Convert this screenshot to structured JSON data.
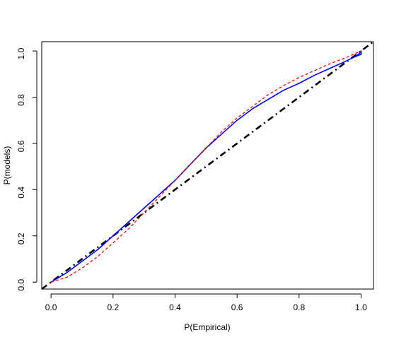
{
  "chart_data": {
    "type": "line",
    "title": "",
    "xlabel": "P(Empirical)",
    "ylabel": "P(models)",
    "xlim": [
      -0.03,
      1.04
    ],
    "ylim": [
      -0.03,
      1.04
    ],
    "x_ticks": [
      0.0,
      0.2,
      0.4,
      0.6,
      0.8,
      1.0
    ],
    "x_tick_labels": [
      "0.0",
      "0.2",
      "0.4",
      "0.6",
      "0.8",
      "1.0"
    ],
    "y_ticks": [
      0.0,
      0.2,
      0.4,
      0.6,
      0.8,
      1.0
    ],
    "y_tick_labels": [
      "0.0",
      "0.2",
      "0.4",
      "0.6",
      "0.8",
      "1.0"
    ],
    "grid": false,
    "legend": "none",
    "series": [
      {
        "style": "solid",
        "color": "#0000ff",
        "x": [
          0.0,
          0.05,
          0.1,
          0.15,
          0.2,
          0.25,
          0.3,
          0.35,
          0.4,
          0.45,
          0.5,
          0.55,
          0.6,
          0.65,
          0.7,
          0.75,
          0.8,
          0.85,
          0.9,
          0.95,
          0.98,
          1.0,
          1.0,
          0.995,
          0.985
        ],
        "y": [
          0.0,
          0.04,
          0.09,
          0.14,
          0.2,
          0.26,
          0.32,
          0.38,
          0.44,
          0.51,
          0.58,
          0.64,
          0.7,
          0.75,
          0.79,
          0.83,
          0.86,
          0.895,
          0.925,
          0.955,
          0.975,
          0.985,
          1.0,
          0.99,
          0.98
        ]
      },
      {
        "style": "dashed",
        "color": "#ff0000",
        "x": [
          0.0,
          0.05,
          0.1,
          0.15,
          0.2,
          0.25,
          0.3,
          0.35,
          0.4,
          0.45,
          0.5,
          0.55,
          0.6,
          0.65,
          0.7,
          0.75,
          0.8,
          0.85,
          0.9,
          0.95,
          1.0
        ],
        "y": [
          0.0,
          0.02,
          0.06,
          0.11,
          0.17,
          0.23,
          0.3,
          0.37,
          0.44,
          0.51,
          0.58,
          0.65,
          0.71,
          0.76,
          0.81,
          0.85,
          0.885,
          0.915,
          0.945,
          0.97,
          1.0
        ]
      },
      {
        "style": "dotdash",
        "color": "#000000",
        "x": [
          -0.03,
          1.04
        ],
        "y": [
          -0.03,
          1.04
        ]
      }
    ]
  }
}
